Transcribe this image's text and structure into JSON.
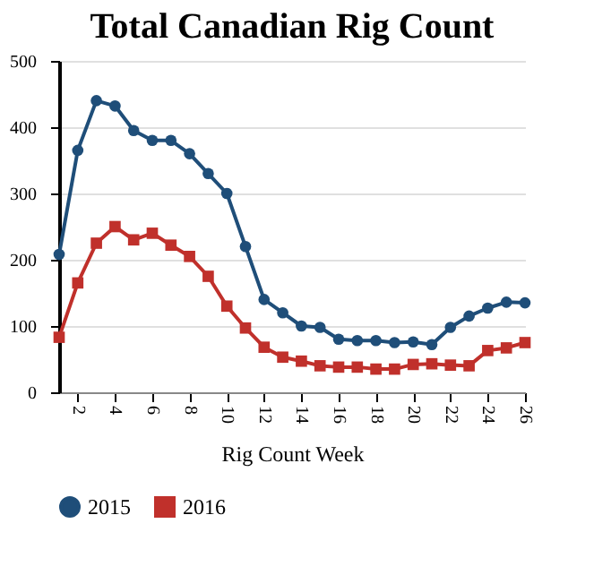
{
  "chart_data": {
    "type": "line",
    "title": "Total Canadian Rig Count",
    "xlabel": "Rig Count Week",
    "x": [
      1,
      2,
      3,
      4,
      5,
      6,
      7,
      8,
      9,
      10,
      11,
      12,
      13,
      14,
      15,
      16,
      17,
      18,
      19,
      20,
      21,
      22,
      23,
      24,
      25,
      26
    ],
    "series": [
      {
        "name": "2015",
        "color": "#1f4e79",
        "marker": "circle",
        "values": [
          208,
          365,
          440,
          432,
          395,
          380,
          380,
          360,
          330,
          300,
          220,
          140,
          120,
          100,
          98,
          80,
          78,
          78,
          75,
          76,
          72,
          98,
          115,
          127,
          136,
          135
        ]
      },
      {
        "name": "2016",
        "color": "#c0302b",
        "marker": "square",
        "values": [
          83,
          165,
          225,
          250,
          230,
          240,
          222,
          205,
          175,
          130,
          97,
          68,
          53,
          47,
          40,
          38,
          38,
          35,
          35,
          42,
          43,
          41,
          40,
          63,
          67,
          75
        ]
      }
    ],
    "xlim": [
      1,
      26
    ],
    "xticks": [
      2,
      4,
      6,
      8,
      10,
      12,
      14,
      16,
      18,
      20,
      22,
      24,
      26
    ],
    "ylim": [
      0,
      500
    ],
    "yticks": [
      0,
      100,
      200,
      300,
      400,
      500
    ],
    "grid": "y",
    "legend": "bottom"
  }
}
